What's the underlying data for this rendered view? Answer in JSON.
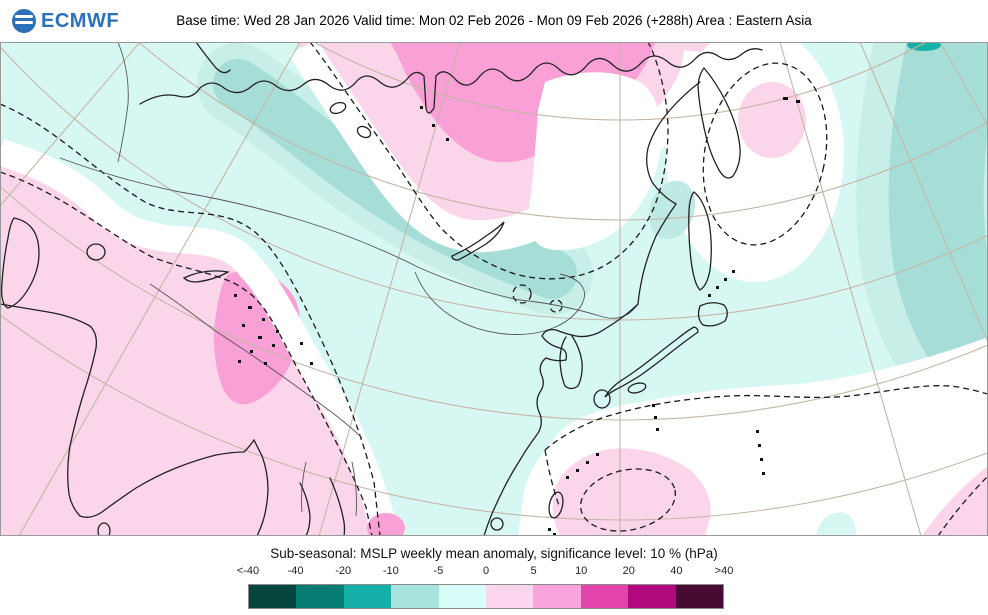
{
  "header": {
    "logo": {
      "icon": "ecmwf-globe-icon",
      "text": "ECMWF"
    },
    "title": "Base time: Wed 28 Jan 2026 Valid time: Mon 02 Feb 2026 - Mon 09 Feb 2026 (+288h) Area : Eastern Asia"
  },
  "footer": {
    "caption": "Sub-seasonal: MSLP weekly mean anomaly, significance level: 10 % (hPa)"
  },
  "legend": {
    "unit": "hPa",
    "tick_labels": [
      "<-40",
      "-40",
      "-20",
      "-10",
      "-5",
      "0",
      "5",
      "10",
      "20",
      "40",
      ">40"
    ],
    "colors": [
      "#05463f",
      "#067c73",
      "#15b1a8",
      "#a7e4de",
      "#d8fcf8",
      "#fcd6ee",
      "#fba3dc",
      "#e244ab",
      "#b1087e",
      "#470a32"
    ]
  },
  "map": {
    "projection": "polar stereographic, Eastern Asia",
    "colors": {
      "background_cyan": "#d7f7f3",
      "teal_rim": "#c8eee8",
      "teal_inner": "#a6ded7",
      "teal_dark": "#16b1a7",
      "pink_light": "#fbd5ea",
      "pink_medium": "#f9a0d6",
      "nonsignificant_white": "#ffffff",
      "graticule": "#c3b6a6",
      "coastline": "#222222",
      "country_border": "#555555",
      "significance_contour": "#1a1a1a",
      "frame": "#999999"
    }
  }
}
